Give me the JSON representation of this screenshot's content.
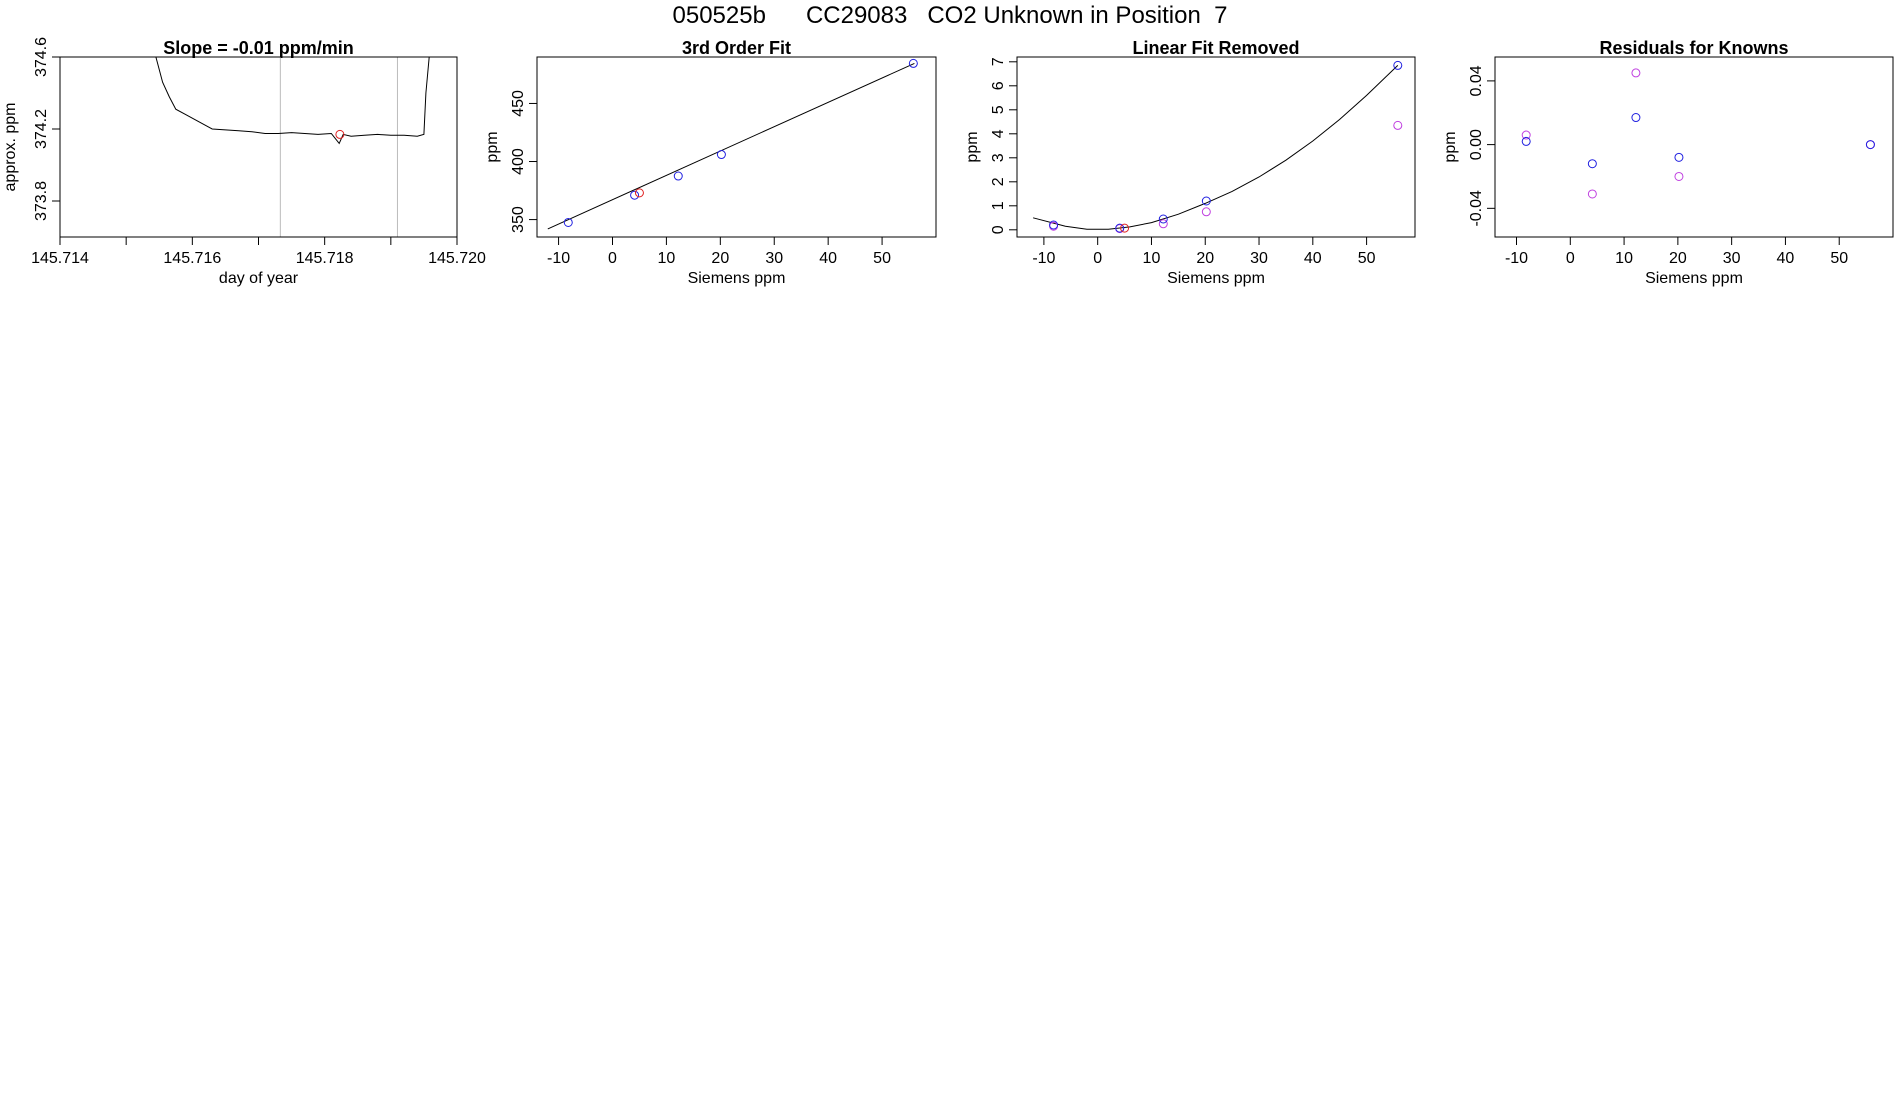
{
  "title": "050525b      CC29083   CO2 Unknown in Position  7",
  "colors": {
    "known": "#2020e0",
    "unknown": "#e02020",
    "residual_alt": "#c040e0",
    "line": "#000000",
    "vline": "#bbbbbb"
  },
  "chart_data": [
    {
      "type": "line",
      "title": "Slope =  -0.01  ppm/min",
      "xlabel": "day of year",
      "ylabel": "approx. ppm",
      "xlim": [
        145.714,
        145.72
      ],
      "ylim": [
        373.6,
        374.6
      ],
      "xticks": [
        145.714,
        145.715,
        145.716,
        145.717,
        145.718,
        145.719,
        145.72
      ],
      "xticklabels": [
        "145.714",
        "",
        "145.716",
        "",
        "145.718",
        "",
        "145.720"
      ],
      "yticks": [
        373.8,
        374.2,
        374.6
      ],
      "yticklabels": [
        "373.8",
        "374.2",
        "374.6"
      ],
      "vlines": [
        145.71733,
        145.7191
      ],
      "series": [
        {
          "x": [
            145.71545,
            145.71555,
            145.71565,
            145.71575,
            145.7159,
            145.7161,
            145.7163,
            145.7165,
            145.7167,
            145.7169,
            145.7171,
            145.7173,
            145.7175,
            145.7177,
            145.7179,
            145.7181,
            145.71822,
            145.71828,
            145.7184,
            145.7186,
            145.7188,
            145.719,
            145.7192,
            145.7194,
            145.7195,
            145.71953,
            145.71958
          ],
          "y": [
            374.6,
            374.46,
            374.38,
            374.31,
            374.28,
            374.24,
            374.2,
            374.195,
            374.19,
            374.185,
            374.175,
            374.175,
            374.18,
            374.175,
            374.17,
            374.175,
            374.12,
            374.17,
            374.16,
            374.165,
            374.17,
            374.165,
            374.165,
            374.16,
            374.17,
            374.4,
            374.6
          ]
        }
      ],
      "points": [
        {
          "x": 145.71823,
          "y": 374.17
        }
      ]
    },
    {
      "type": "scatter",
      "title": "3rd Order Fit",
      "xlabel": "Siemens ppm",
      "ylabel": "ppm",
      "xlim": [
        -14,
        60
      ],
      "ylim": [
        335,
        490
      ],
      "xticks": [
        -10,
        0,
        10,
        20,
        30,
        40,
        50
      ],
      "xticklabels": [
        "-10",
        "0",
        "10",
        "20",
        "30",
        "40",
        "50"
      ],
      "yticks": [
        350,
        400,
        450
      ],
      "yticklabels": [
        "350",
        "400",
        "450"
      ],
      "known": {
        "x": [
          -8.2,
          4.1,
          12.2,
          20.2,
          55.8
        ],
        "y": [
          347.5,
          371,
          387.5,
          406,
          484.5
        ]
      },
      "unknown": {
        "x": [
          5.0
        ],
        "y": [
          373
        ]
      },
      "fit_line": {
        "x": [
          -12,
          56
        ],
        "y": [
          342,
          484.5
        ]
      }
    },
    {
      "type": "scatter",
      "title": "Linear Fit Removed",
      "xlabel": "Siemens ppm",
      "ylabel": "ppm",
      "xlim": [
        -15,
        59
      ],
      "ylim": [
        -0.3,
        7.2
      ],
      "xticks": [
        -10,
        0,
        10,
        20,
        30,
        40,
        50
      ],
      "xticklabels": [
        "-10",
        "0",
        "10",
        "20",
        "30",
        "40",
        "50"
      ],
      "yticks": [
        0,
        1,
        2,
        3,
        4,
        5,
        6,
        7
      ],
      "yticklabels": [
        "0",
        "1",
        "2",
        "3",
        "4",
        "5",
        "6",
        "7"
      ],
      "known": {
        "x": [
          -8.2,
          4.1,
          12.2,
          20.2,
          55.8
        ],
        "y": [
          0.2,
          0.07,
          0.45,
          1.2,
          6.85
        ]
      },
      "alt": {
        "x": [
          -8.2,
          4.1,
          12.2,
          20.2,
          55.8
        ],
        "y": [
          0.15,
          0.05,
          0.25,
          0.75,
          4.35
        ]
      },
      "unknown": {
        "x": [
          5.0
        ],
        "y": [
          0.07
        ]
      },
      "curve": {
        "x": [
          -12,
          -6,
          -2,
          2,
          6,
          10,
          15,
          20,
          25,
          30,
          35,
          40,
          45,
          50,
          55.8
        ],
        "y": [
          0.5,
          0.15,
          0.02,
          0.02,
          0.12,
          0.3,
          0.65,
          1.1,
          1.6,
          2.2,
          2.9,
          3.7,
          4.6,
          5.6,
          6.85
        ]
      }
    },
    {
      "type": "scatter",
      "title": "Residuals for Knowns",
      "xlabel": "Siemens ppm",
      "ylabel": "ppm",
      "xlim": [
        -14,
        60
      ],
      "ylim": [
        -0.058,
        0.055
      ],
      "xticks": [
        -10,
        0,
        10,
        20,
        30,
        40,
        50
      ],
      "xticklabels": [
        "-10",
        "0",
        "10",
        "20",
        "30",
        "40",
        "50"
      ],
      "yticks": [
        -0.04,
        0.0,
        0.04
      ],
      "yticklabels": [
        "-0.04",
        "0.00",
        "0.04"
      ],
      "known": {
        "x": [
          -8.2,
          4.1,
          12.2,
          20.2,
          55.8
        ],
        "y": [
          0.002,
          -0.012,
          0.017,
          -0.008,
          0.0
        ]
      },
      "alt": {
        "x": [
          -8.2,
          4.1,
          12.2,
          20.2,
          55.8
        ],
        "y": [
          0.006,
          -0.031,
          0.045,
          -0.02,
          0.0
        ]
      }
    }
  ]
}
